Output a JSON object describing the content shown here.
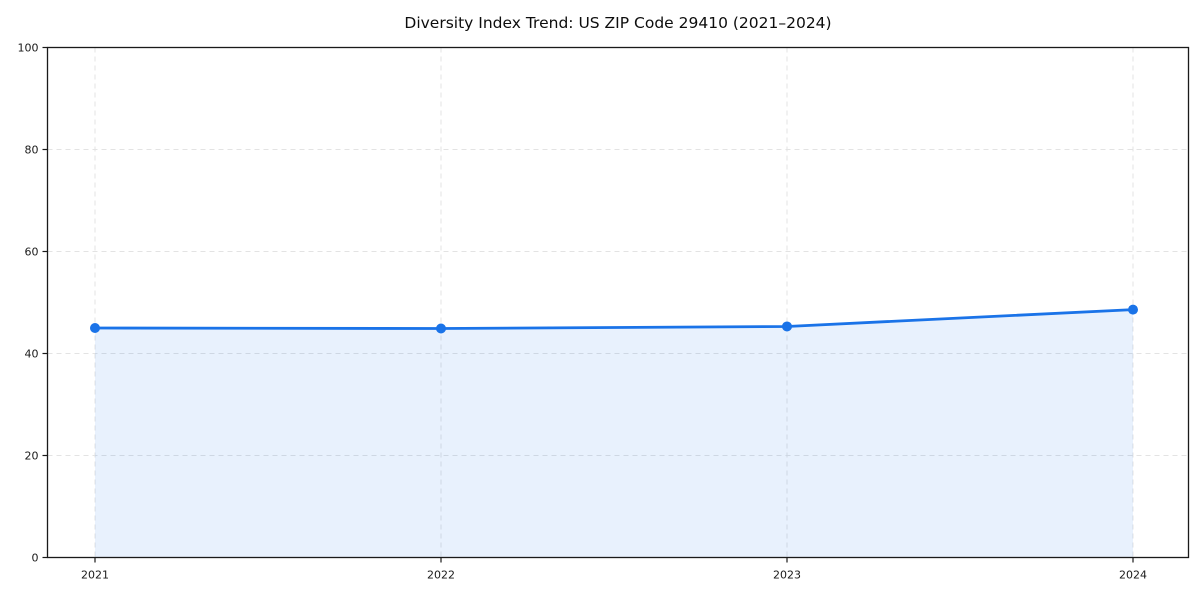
{
  "chart_data": {
    "type": "line",
    "title": "Diversity Index Trend: US ZIP Code 29410 (2021–2024)",
    "x": [
      2021,
      2022,
      2023,
      2024
    ],
    "series": [
      {
        "name": "Diversity Index",
        "values": [
          45.0,
          44.9,
          45.3,
          48.6
        ]
      }
    ],
    "xlabel": "",
    "ylabel": "",
    "ylim": [
      0,
      100
    ],
    "yticks": [
      0,
      20,
      40,
      60,
      80,
      100
    ],
    "grid": true,
    "grid_style": "dashed",
    "legend_position": "none",
    "area_fill": true,
    "marker": "circle",
    "colors": {
      "line": "#1a73e8",
      "marker": "#1a73e8",
      "area": "rgba(26,115,232,0.10)",
      "grid": "#e3e3e3",
      "spine": "#1a1a1a",
      "tick_label": "#1a1a1a",
      "title": "#0d0d0d",
      "background": "#ffffff"
    }
  }
}
